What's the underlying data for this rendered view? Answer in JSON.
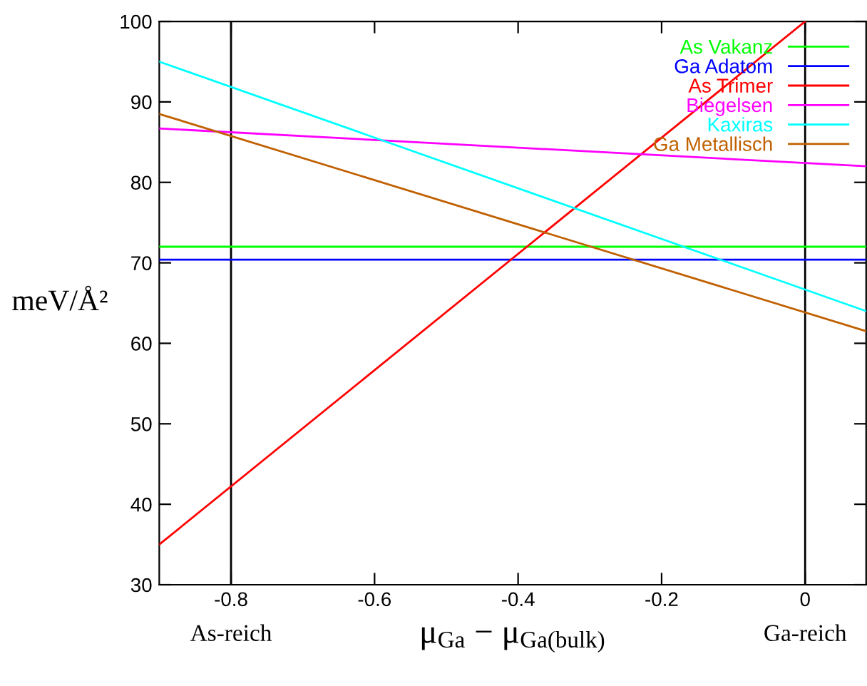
{
  "chart_data": {
    "type": "line",
    "xlabel": "μ$_{Ga}$ − μ$_{Ga(bulk)}$",
    "ylabel": "meV/Å²",
    "x": [
      -0.9,
      0.085
    ],
    "series": [
      {
        "name": "As Vakanz",
        "color": "#00ff00",
        "values": [
          72.0,
          72.0
        ]
      },
      {
        "name": "Ga Adatom",
        "color": "#0000ff",
        "values": [
          70.4,
          70.4
        ]
      },
      {
        "name": "As Trimer",
        "color": "#ff0000",
        "x": [
          -0.9,
          0
        ],
        "values": [
          35,
          100
        ]
      },
      {
        "name": "Biegelsen",
        "color": "#ff00ff",
        "values": [
          86.7,
          82.0
        ]
      },
      {
        "name": "Kaxiras",
        "color": "#00ffff",
        "values": [
          95.0,
          64.0
        ]
      },
      {
        "name": "Ga Metallisch",
        "color": "#c06000",
        "values": [
          88.5,
          61.5
        ]
      }
    ],
    "ref_lines": [
      {
        "axis": "x",
        "value": -0.8,
        "label": "As-reich",
        "color": "#000000"
      },
      {
        "axis": "x",
        "value": 0,
        "label": "Ga-reich",
        "color": "#000000"
      }
    ],
    "xlim": [
      -0.9,
      0.085
    ],
    "ylim": [
      30,
      100
    ],
    "xticks": [
      -0.8,
      -0.6,
      -0.4,
      -0.2,
      0
    ],
    "yticks": [
      30,
      40,
      50,
      60,
      70,
      80,
      90,
      100
    ],
    "grid": false,
    "legend": "top right",
    "marker": "none",
    "line_style": "solid"
  }
}
